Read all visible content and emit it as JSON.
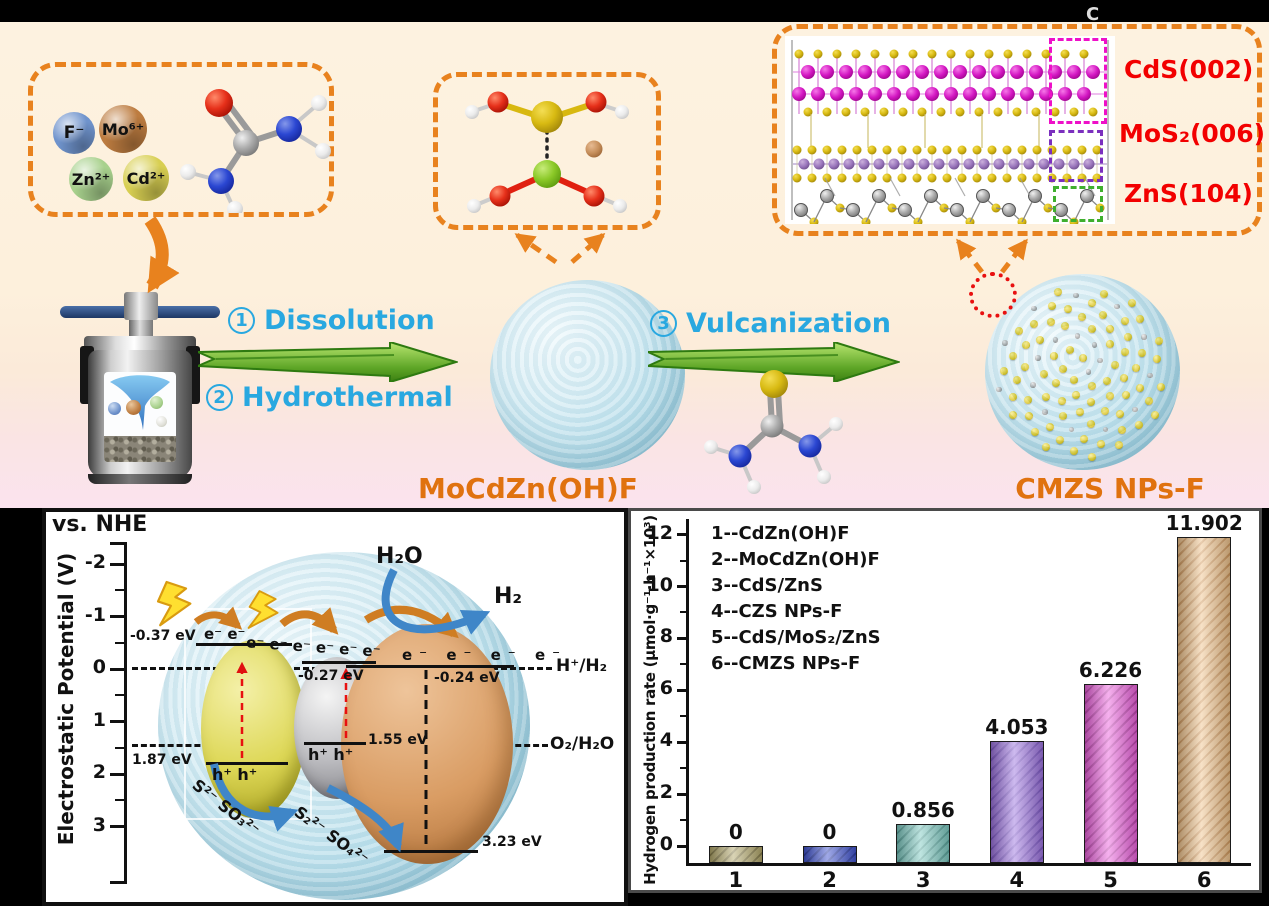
{
  "colors": {
    "dashed_box_orange": "#e8821e",
    "step_text_cyan": "#29a8e0",
    "product_label_orange": "#e0720f",
    "crystal_label_red": "#f20000",
    "arrow_green": "#5da526",
    "flower_blue": "#bce0ec",
    "electron_arrow_blue": "#3f86c8"
  },
  "scheme": {
    "ions": [
      {
        "label": "F⁻",
        "color": "#6f93cc"
      },
      {
        "label": "Mo⁶⁺",
        "color": "#bd7c40"
      },
      {
        "label": "Zn²⁺",
        "color": "#a8d18d"
      },
      {
        "label": "Cd²⁺",
        "color": "#d8cf52"
      }
    ],
    "steps": [
      {
        "num": "1",
        "label": "Dissolution"
      },
      {
        "num": "2",
        "label": "Hydrothermal"
      },
      {
        "num": "3",
        "label": "Vulcanization"
      }
    ],
    "product1": "MoCdZn(OH)F",
    "product2": "CMZS NPs-F",
    "crystal_planes": [
      {
        "label": "CdS(002)",
        "box_color": "#ee10c8"
      },
      {
        "label": "MoS₂(006)",
        "box_color": "#7b2fbe"
      },
      {
        "label": "ZnS(104)",
        "box_color": "#3faf2e"
      }
    ],
    "corner_artifact": "C"
  },
  "band_diagram": {
    "title": "vs. NHE",
    "ylabel": "Electrostatic Potential (V)",
    "yticks": [
      "-2",
      "-1",
      "0",
      "1",
      "2",
      "3"
    ],
    "cb1": "-0.37 eV",
    "cb2": "-0.27 eV",
    "cb3": "-0.24 eV",
    "gap1": "1.87 eV",
    "gap2": "1.55 eV",
    "gap3": "3.23 eV",
    "holes1": "h⁺ h⁺",
    "holes2": "h⁺ h⁺",
    "e_row1": "e⁻ e⁻",
    "e_row2": "e⁻ e⁻ e⁻ e⁻ e⁻ e⁻",
    "e_row3": "e⁻ e⁻ e⁻ e⁻",
    "h2o": "H₂O",
    "h2": "H₂",
    "level_h": "H⁺/H₂",
    "level_o": "O₂/H₂O",
    "redox1": "S²⁻ SO₃²⁻",
    "redox2": "S₂²⁻ SO₄²⁻"
  },
  "chart_data": {
    "type": "bar",
    "categories": [
      "1",
      "2",
      "3",
      "4",
      "5",
      "6"
    ],
    "values": [
      0,
      0,
      0.856,
      4.053,
      6.226,
      11.902
    ],
    "bar_labels": [
      "0",
      "0",
      "0.856",
      "4.053",
      "6.226",
      "11.902"
    ],
    "legend": [
      "1--CdZn(OH)F",
      "2--MoCdZn(OH)F",
      "3--CdS/ZnS",
      "4--CZS NPs-F",
      "5--CdS/MoS₂/ZnS",
      "6--CMZS NPs-F"
    ],
    "ylabel": "Hydrogen production rate (μmol·g⁻¹·h⁻¹×10³)",
    "xlabel": "",
    "yticks": [
      0,
      2,
      4,
      6,
      8,
      10,
      12
    ],
    "ylim": [
      -0.65,
      12.6
    ],
    "grid": false,
    "legend_position": "top-left-inside",
    "bar_colors": [
      "#b3a86b",
      "#4053cf",
      "#7ecac2",
      "#9d74e0",
      "#ec63dd",
      "#f0c48e"
    ],
    "bar_hatch_colors": [
      "#857b48",
      "#2a3aa4",
      "#58a59d",
      "#7e57c8",
      "#c343b4",
      "#d29a5e"
    ]
  }
}
